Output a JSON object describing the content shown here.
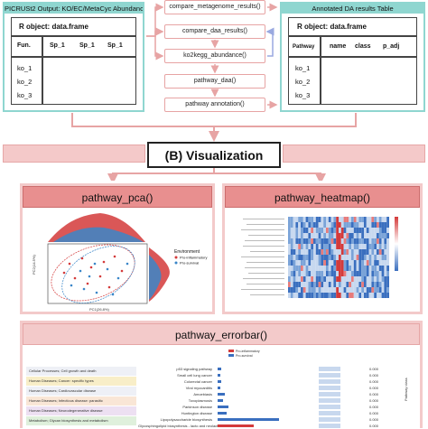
{
  "input_panel": {
    "header": "PICRUSt2 Output: KO/EC/MetaCyc Abundance",
    "df_title": "R object: data.frame",
    "columns": [
      "Fun.",
      "Sp_1",
      "Sp_1",
      "Sp_1"
    ],
    "rows": [
      "ko_1",
      "ko_2",
      "ko_3"
    ]
  },
  "steps": [
    "compare_metagenome_results()",
    "compare_daa_results()",
    "ko2kegg_abundance()",
    "pathway_daa()",
    "pathway annotation()"
  ],
  "output_panel": {
    "header": "Annotated DA results Table",
    "df_title": "R object: data.frame",
    "columns": [
      "Pathway",
      "name",
      "class",
      "p_adj"
    ],
    "rows": [
      "ko_1",
      "ko_2",
      "ko_3"
    ]
  },
  "visualization": {
    "title": "(B) Visualization"
  },
  "pca_panel": {
    "title": "pathway_pca()",
    "ylabel": "PC2(14.5%)",
    "xlabel": "PC1(26.8%)",
    "legend_title": "Environment",
    "legend_items": [
      "Pro-inflammatory",
      "Pro-survival"
    ],
    "colors": {
      "pro_inflammatory": "#d43a3a",
      "pro_survival": "#3a86c8"
    }
  },
  "heatmap_panel": {
    "title": "pathway_heatmap()"
  },
  "errorbar_panel": {
    "title": "pathway_errorbar()",
    "legend_items": [
      "Pro-inflammatory",
      "Pro-survival"
    ],
    "categories": [
      "Cellular Processes; Cell growth and death",
      "Human Diseases; Cancer: specific types",
      "Human Diseases; Cardiovascular disease",
      "Human Diseases; Infectious disease: parasitic",
      "Human Diseases; Neurodegenerative disease",
      "Metabolism; Glycan biosynthesis and metabolism"
    ],
    "pathways": [
      "p53 signaling pathway",
      "Small cell lung cancer",
      "Colorectal cancer",
      "Viral myocarditis",
      "Amoebiasis",
      "Toxoplasmosis",
      "Parkinson disease",
      "Huntington disease",
      "Lipopolysaccharide biosynthesis",
      "Glycosphingolipid biosynthesis - lacto and neolacto series"
    ],
    "p_values": [
      "0.000",
      "0.000",
      "0.000",
      "0.000",
      "0.000",
      "0.000",
      "0.000",
      "0.000",
      "0.000",
      "0.000"
    ],
    "side_label": "Pathway class"
  }
}
